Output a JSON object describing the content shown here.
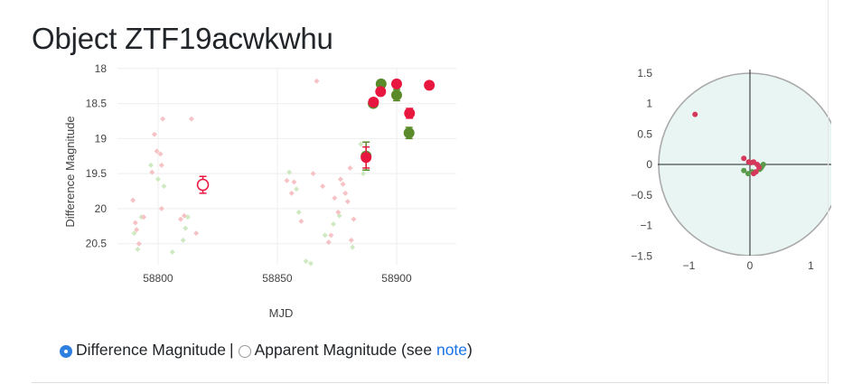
{
  "header": {
    "title": "Object ZTF19acwkwhu"
  },
  "lightcurve": {
    "y_axis_label": "Difference Magnitude",
    "x_axis_label": "MJD",
    "x_range": [
      58783,
      58925
    ],
    "y_range": [
      20.8,
      17.99
    ],
    "x_ticks": [
      58800,
      58850,
      58900
    ],
    "y_ticks": [
      18,
      18.5,
      19,
      19.5,
      20,
      20.5
    ],
    "colors": {
      "r": "#e8173f",
      "g": "#5a8a2a",
      "r_faint": "#f6c2c5",
      "g_faint": "#cfeac2"
    },
    "detections": [
      {
        "band": "r",
        "mjd": 58887.2,
        "mag": 19.27,
        "err": 0.15
      },
      {
        "band": "r",
        "mjd": 58890.3,
        "mag": 18.48,
        "err": 0.05
      },
      {
        "band": "r",
        "mjd": 58893.3,
        "mag": 18.33,
        "err": 0.05
      },
      {
        "band": "r",
        "mjd": 58900.0,
        "mag": 18.22,
        "err": 0.05
      },
      {
        "band": "r",
        "mjd": 58905.4,
        "mag": 18.64,
        "err": 0.07
      },
      {
        "band": "r",
        "mjd": 58913.7,
        "mag": 18.24,
        "err": 0.05
      },
      {
        "band": "g",
        "mjd": 58887.2,
        "mag": 19.25,
        "err": 0.2
      },
      {
        "band": "g",
        "mjd": 58890.2,
        "mag": 18.5,
        "err": 0.05
      },
      {
        "band": "g",
        "mjd": 58893.5,
        "mag": 18.22,
        "err": 0.05
      },
      {
        "band": "g",
        "mjd": 58900.0,
        "mag": 18.38,
        "err": 0.08
      },
      {
        "band": "g",
        "mjd": 58905.2,
        "mag": 18.92,
        "err": 0.08
      }
    ],
    "forced": [
      {
        "band": "r",
        "mjd": 58818.8,
        "mag": 19.66,
        "err": 0.12
      }
    ],
    "nondetections_r": [
      [
        58789.5,
        19.88
      ],
      [
        58790.5,
        20.2
      ],
      [
        58791.0,
        20.3
      ],
      [
        58792.0,
        20.5
      ],
      [
        58794.0,
        20.12
      ],
      [
        58797.5,
        19.48
      ],
      [
        58798.5,
        18.94
      ],
      [
        58799.5,
        19.18
      ],
      [
        58801.0,
        19.22
      ],
      [
        58801.5,
        19.38
      ],
      [
        58802.0,
        18.72
      ],
      [
        58801.5,
        20.0
      ],
      [
        58809.5,
        20.15
      ],
      [
        58811.0,
        20.1
      ],
      [
        58814.0,
        18.72
      ],
      [
        58816.0,
        20.35
      ],
      [
        58854.0,
        19.6
      ],
      [
        58856.0,
        19.78
      ],
      [
        58857.0,
        19.62
      ],
      [
        58860.0,
        20.18
      ],
      [
        58865.0,
        19.5
      ],
      [
        58866.5,
        18.18
      ],
      [
        58869.0,
        19.68
      ],
      [
        58871.5,
        20.48
      ],
      [
        58872.5,
        20.38
      ],
      [
        58874.0,
        19.85
      ],
      [
        58875.5,
        20.05
      ],
      [
        58876.5,
        19.58
      ],
      [
        58877.5,
        19.65
      ],
      [
        58878.5,
        19.78
      ],
      [
        58879.5,
        19.9
      ],
      [
        58880.5,
        19.42
      ],
      [
        58881.0,
        20.45
      ],
      [
        58882.0,
        20.15
      ]
    ],
    "nondetections_g": [
      [
        58790.0,
        20.35
      ],
      [
        58791.5,
        20.58
      ],
      [
        58793.0,
        20.12
      ],
      [
        58797.0,
        19.38
      ],
      [
        58800.0,
        19.58
      ],
      [
        58802.5,
        19.68
      ],
      [
        58806.0,
        20.62
      ],
      [
        58810.5,
        20.45
      ],
      [
        58811.5,
        20.28
      ],
      [
        58812.5,
        20.12
      ],
      [
        58855.0,
        19.48
      ],
      [
        58858.0,
        19.72
      ],
      [
        58859.0,
        20.05
      ],
      [
        58862.0,
        20.75
      ],
      [
        58864.0,
        20.78
      ],
      [
        58870.0,
        20.38
      ],
      [
        58873.5,
        20.22
      ],
      [
        58876.0,
        20.1
      ],
      [
        58881.5,
        20.55
      ],
      [
        58885.0,
        19.08
      ],
      [
        58886.0,
        19.5
      ]
    ]
  },
  "position_plot": {
    "x_ticks": [
      "−1",
      "0",
      "1"
    ],
    "y_ticks": [
      "1.5",
      "1",
      "0.5",
      "0",
      "−0.5",
      "−1",
      "−1.5"
    ],
    "range": [
      -1.5,
      1.5
    ],
    "circle_fill": "#e9f5f2",
    "circle_stroke": "#aaaaaa",
    "points_r": [
      [
        -0.9,
        0.82
      ],
      [
        -0.1,
        0.1
      ],
      [
        -0.02,
        0.04
      ],
      [
        0.02,
        0.03
      ],
      [
        0.06,
        0.04
      ],
      [
        0.12,
        0.0
      ],
      [
        0.15,
        -0.05
      ],
      [
        0.1,
        -0.12
      ],
      [
        0.06,
        -0.15
      ]
    ],
    "points_g": [
      [
        -0.1,
        -0.1
      ],
      [
        -0.03,
        -0.15
      ],
      [
        0.04,
        -0.12
      ],
      [
        0.16,
        -0.08
      ],
      [
        0.2,
        -0.03
      ],
      [
        0.22,
        0.0
      ],
      [
        0.18,
        -0.06
      ]
    ]
  },
  "controls": {
    "opt_diff": "Difference Magnitude",
    "separator": "|",
    "opt_app": "Apparent Magnitude (see ",
    "note_link": "note",
    "close_paren": ")"
  }
}
